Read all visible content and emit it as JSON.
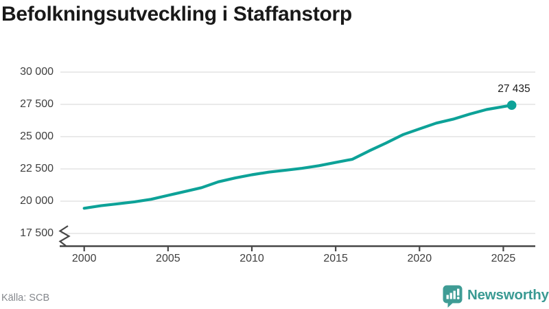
{
  "header": {
    "title": "Befolkningsutveckling i Staffanstorp"
  },
  "footer": {
    "source": "Källa: SCB",
    "brand": "Newsworthy"
  },
  "colors": {
    "line": "#0da298",
    "grid": "#e3e3e3",
    "axis": "#464646",
    "brand_icon": "#3f9c95",
    "brand_text": "#3a9a93"
  },
  "chart_data": {
    "type": "line",
    "title": "Befolkningsutveckling i Staffanstorp",
    "xlabel": "",
    "ylabel": "",
    "source": "Källa: SCB",
    "legend": "none",
    "grid": "horizontal",
    "axis_break": true,
    "xlim": [
      1999.9,
      2026.9
    ],
    "ylim": [
      17500,
      30000
    ],
    "x": [
      2000,
      2001,
      2002,
      2003,
      2004,
      2005,
      2006,
      2007,
      2008,
      2009,
      2010,
      2011,
      2012,
      2013,
      2014,
      2015,
      2016,
      2017,
      2018,
      2019,
      2020,
      2021,
      2022,
      2023,
      2024,
      2025.5
    ],
    "values": [
      19450,
      19650,
      19800,
      19950,
      20150,
      20450,
      20750,
      21050,
      21500,
      21800,
      22050,
      22250,
      22400,
      22550,
      22750,
      23000,
      23250,
      23900,
      24500,
      25150,
      25600,
      26050,
      26350,
      26750,
      27100,
      27435
    ],
    "end_label": "27 435",
    "x_ticks": [
      {
        "value": 2000,
        "label": "2000"
      },
      {
        "value": 2005,
        "label": "2005"
      },
      {
        "value": 2010,
        "label": "2010"
      },
      {
        "value": 2015,
        "label": "2015"
      },
      {
        "value": 2020,
        "label": "2020"
      },
      {
        "value": 2025,
        "label": "2025"
      }
    ],
    "y_ticks": [
      {
        "value": 30000,
        "label": "30 000"
      },
      {
        "value": 27500,
        "label": "27 500"
      },
      {
        "value": 25000,
        "label": "25 000"
      },
      {
        "value": 22500,
        "label": "22 500"
      },
      {
        "value": 20000,
        "label": "20 000"
      },
      {
        "value": 17500,
        "label": "17 500"
      }
    ]
  }
}
